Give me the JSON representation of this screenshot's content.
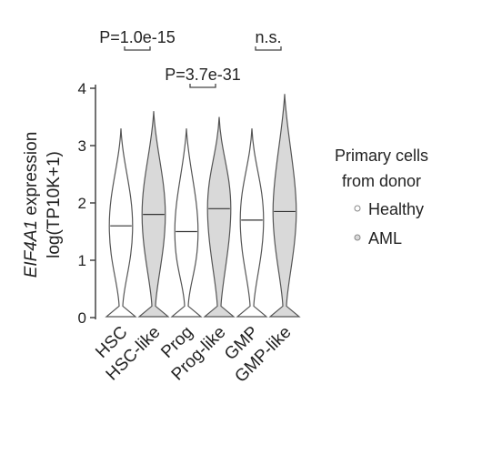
{
  "chart_data": {
    "type": "violin",
    "ylabel_gene": "EIF4A1",
    "ylabel_rest": " expression",
    "ylabel_line2": "log(TP10K+1)",
    "ylim": [
      0,
      4
    ],
    "yticks": [
      "0",
      "1",
      "2",
      "3",
      "4"
    ],
    "categories": [
      "HSC",
      "HSC-like",
      "Prog",
      "Prog-like",
      "GMP",
      "GMP-like"
    ],
    "groups": [
      "Healthy",
      "AML",
      "Healthy",
      "AML",
      "Healthy",
      "AML"
    ],
    "medians": [
      1.6,
      1.8,
      1.5,
      1.9,
      1.7,
      1.85
    ],
    "maxima": [
      3.3,
      3.6,
      3.3,
      3.5,
      3.3,
      3.9
    ],
    "colors": {
      "Healthy": "#ffffff",
      "AML": "#d9d9d9",
      "outline": "#555555"
    },
    "legend": {
      "title_line1": "Primary cells",
      "title_line2": "from donor",
      "items": [
        {
          "label": "Healthy",
          "color": "#ffffff"
        },
        {
          "label": "AML",
          "color": "#d9d9d9"
        }
      ]
    },
    "annotations": [
      {
        "text": "P=1.0e-15",
        "from": 0,
        "to": 1,
        "level": "top"
      },
      {
        "text": "P=3.7e-31",
        "from": 2,
        "to": 3,
        "level": "mid"
      },
      {
        "text": "n.s.",
        "from": 4,
        "to": 5,
        "level": "top"
      }
    ]
  }
}
